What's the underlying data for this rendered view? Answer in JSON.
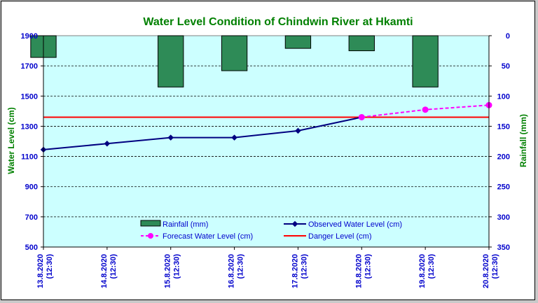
{
  "chart_data": {
    "type": "bar+line",
    "title": "Water Level Condition of Chindwin River at  Hkamti",
    "ylabel_left": "Water Level (cm)",
    "ylabel_right": "Rainfall (mm)",
    "ylim_left": [
      500,
      1900
    ],
    "yticks_left": [
      "500",
      "700",
      "900",
      "1100",
      "1300",
      "1500",
      "1700",
      "1900"
    ],
    "ylim_right": [
      0,
      350
    ],
    "right_axis_inverted": true,
    "yticks_right": [
      "0",
      "50",
      "100",
      "150",
      "200",
      "250",
      "300",
      "350"
    ],
    "categories": [
      {
        "date": "13.8.2020",
        "time": "(12:30)"
      },
      {
        "date": "14.8.2020",
        "time": "(12:30)"
      },
      {
        "date": "15.8.2020",
        "time": "(12:30)"
      },
      {
        "date": "16.8.2020",
        "time": "(12:30)"
      },
      {
        "date": "17.8.2020",
        "time": "(12:30)"
      },
      {
        "date": "18.8.2020",
        "time": "(12:30)"
      },
      {
        "date": "19.8.2020",
        "time": "(12:30)"
      },
      {
        "date": "20.8.2020",
        "time": "(12:30)"
      }
    ],
    "series": [
      {
        "name": "Rainfall (mm)",
        "kind": "bar",
        "axis": "right",
        "color": "#2e8b57",
        "values": [
          36,
          0,
          85,
          58,
          21,
          25,
          85,
          0
        ]
      },
      {
        "name": "Observed Water Level (cm)",
        "kind": "line",
        "axis": "left",
        "color": "#000080",
        "values": [
          1145,
          1185,
          1225,
          1225,
          1270,
          1360,
          null,
          null
        ]
      },
      {
        "name": "Forecast Water Level (cm)",
        "kind": "dashed-line",
        "axis": "left",
        "color": "#ff00ff",
        "values": [
          null,
          null,
          null,
          null,
          null,
          1360,
          1410,
          1440
        ]
      },
      {
        "name": "Danger Level (cm)",
        "kind": "hline",
        "axis": "left",
        "color": "#ff0000",
        "value": 1360
      }
    ],
    "grid": "horizontal dashed",
    "plot_background": "#ccffff",
    "legend_position": "bottom-center inside plot",
    "colors": {
      "title": "#008000",
      "axis_text": "#0000cc",
      "ylabel_left": "#008000",
      "ylabel_right": "#008000"
    }
  }
}
